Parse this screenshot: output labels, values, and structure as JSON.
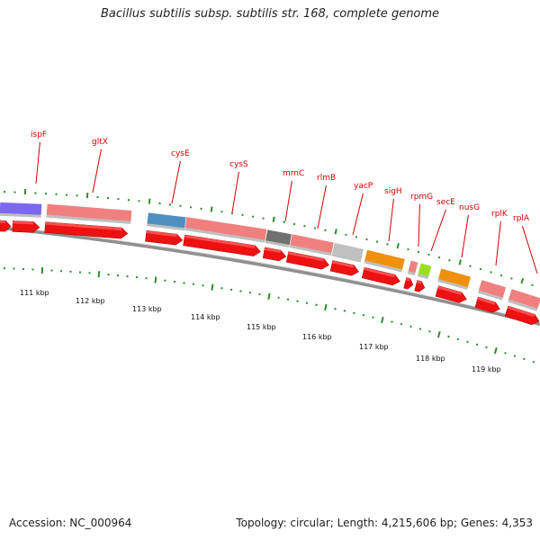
{
  "title": "Bacillus subtilis subsp. subtilis str. 168, complete genome",
  "accession": "Accession: NC_000964",
  "summary": "Topology: circular; Length: 4,215,606 bp; Genes: 4,353",
  "colors": {
    "cds_arrow": "#ee1111",
    "backbone": "#909090",
    "tick": "#2e8b2e",
    "label": "#d40000"
  },
  "kbp_ticks": [
    "111 kbp",
    "112 kbp",
    "113 kbp",
    "114 kbp",
    "115 kbp",
    "116 kbp",
    "117 kbp",
    "118 kbp",
    "119 kbp"
  ],
  "gene_labels": [
    "ispF",
    "gltX",
    "cysE",
    "cysS",
    "mrnC",
    "rlmB",
    "yacP",
    "sigH",
    "rpmG",
    "secE",
    "nusG",
    "rplK",
    "rplA"
  ],
  "feature_colors": [
    "#7b68ee",
    "#f08080",
    "#4f8fc0",
    "#f08080",
    "#707070",
    "#f08080",
    "#c0c0c0",
    "#f0900f",
    "#f08080",
    "#9be020",
    "#f0900f",
    "#f08080",
    "#f08080"
  ]
}
